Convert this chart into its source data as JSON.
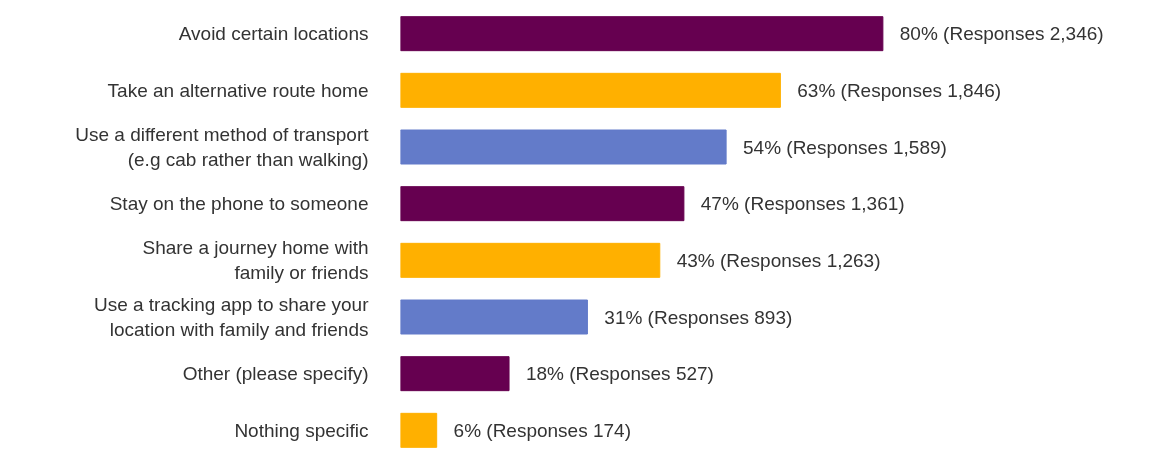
{
  "chart_data": {
    "type": "bar",
    "orientation": "horizontal",
    "categories": [
      "Avoid certain locations",
      "Take an alternative route home",
      "Use a different method of transport\n(e.g cab rather than walking)",
      "Stay on the phone to someone",
      "Share a journey home with\nfamily or friends",
      "Use a tracking app to share your\nlocation with family and friends",
      "Other (please specify)",
      "Nothing specific"
    ],
    "values": [
      80,
      63,
      54,
      47,
      43,
      31,
      18,
      6
    ],
    "colors": [
      "#660050",
      "#ffb000",
      "#637bc9",
      "#660050",
      "#ffb000",
      "#637bc9",
      "#660050",
      "#ffb000"
    ],
    "value_labels": [
      "80% (Responses 2,346)",
      "63% (Responses 1,846)",
      "54% (Responses 1,589)",
      "47% (Responses 1,361)",
      "43% (Responses 1,263)",
      "31% (Responses 893)",
      "18% (Responses 527)",
      "6% (Responses 174)"
    ],
    "grid": false
  }
}
